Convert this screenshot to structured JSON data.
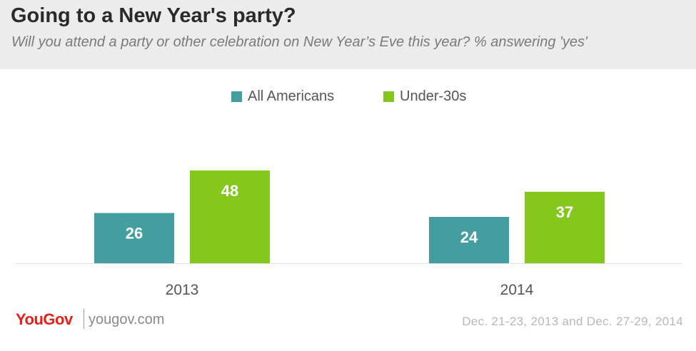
{
  "header": {
    "title": "Going to a New Year's party?",
    "subtitle": "Will you attend a party or other celebration on New Year’s Eve this year? % answering 'yes'"
  },
  "chart_data": {
    "type": "bar",
    "title": "Going to a New Year's party?",
    "subtitle": "Will you attend a party or other celebration on New Year’s Eve this year? % answering 'yes'",
    "categories": [
      "2013",
      "2014"
    ],
    "series": [
      {
        "name": "All Americans",
        "values": [
          26,
          24
        ],
        "color": "#449d9f"
      },
      {
        "name": "Under-30s",
        "values": [
          48,
          37
        ],
        "color": "#84c81e"
      }
    ],
    "ylim": [
      0,
      48
    ],
    "grid": false,
    "legend_position": "top-center",
    "xlabel": "",
    "ylabel": ""
  },
  "footer": {
    "brand": "YouGov",
    "site": "yougov.com",
    "dates": "Dec. 21-23, 2013 and Dec. 27-29, 2014"
  }
}
